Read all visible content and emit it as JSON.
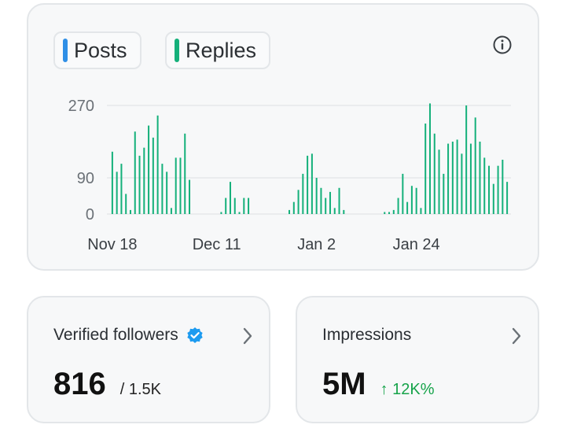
{
  "chart": {
    "legend": [
      {
        "label": "Posts",
        "color": "#2f8fe6"
      },
      {
        "label": "Replies",
        "color": "#14b07a"
      }
    ],
    "bar_color": "#14b07a",
    "grid_color": "#e5e7ea",
    "axis_text_color": "#6b7177",
    "info_icon": "info-icon"
  },
  "chart_data": {
    "type": "bar",
    "title": "",
    "xlabel": "",
    "ylabel": "",
    "ylim": [
      0,
      270
    ],
    "y_ticks": [
      0,
      90,
      270
    ],
    "x_tick_labels": [
      {
        "label": "Nov 18",
        "index": 0
      },
      {
        "label": "Dec 11",
        "index": 23
      },
      {
        "label": "Jan 2",
        "index": 45
      },
      {
        "label": "Jan 24",
        "index": 67
      }
    ],
    "series": [
      {
        "name": "Replies",
        "values": [
          155,
          105,
          125,
          50,
          10,
          205,
          145,
          165,
          220,
          190,
          245,
          125,
          105,
          15,
          140,
          140,
          200,
          85,
          0,
          0,
          0,
          0,
          0,
          0,
          5,
          40,
          80,
          40,
          5,
          40,
          40,
          0,
          0,
          0,
          0,
          0,
          0,
          0,
          0,
          10,
          30,
          60,
          100,
          145,
          150,
          90,
          65,
          40,
          55,
          15,
          65,
          10,
          0,
          0,
          0,
          0,
          0,
          0,
          0,
          0,
          5,
          5,
          10,
          40,
          100,
          30,
          70,
          65,
          15,
          225,
          275,
          200,
          160,
          100,
          175,
          180,
          185,
          150,
          270,
          175,
          240,
          180,
          140,
          120,
          75,
          120,
          135,
          80
        ]
      }
    ]
  },
  "followers": {
    "title": "Verified followers",
    "value": "816",
    "total": "/ 1.5K",
    "badge_color": "#1d9bf0"
  },
  "impressions": {
    "title": "Impressions",
    "value": "5M",
    "delta": "↑ 12K%"
  }
}
